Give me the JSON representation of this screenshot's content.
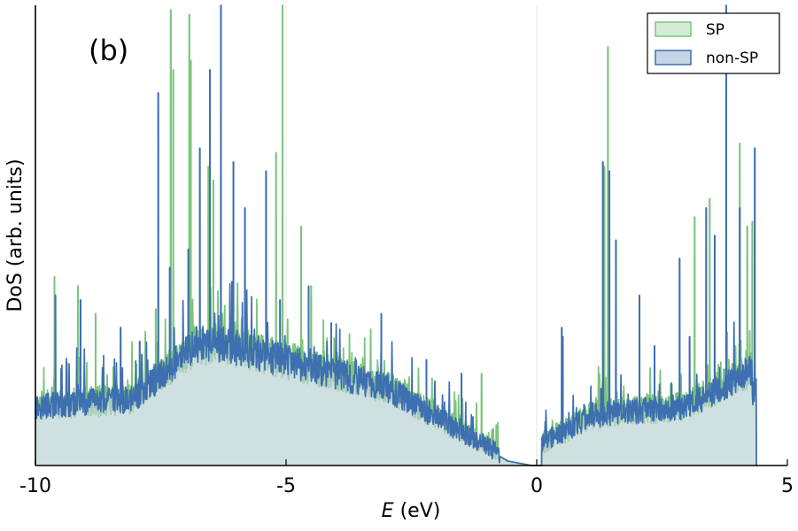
{
  "chart_data": {
    "type": "area",
    "panel_label": "(b)",
    "xlabel_italic": "E",
    "xlabel_unit": " (eV)",
    "ylabel": "DoS (arb. units)",
    "xlim": [
      -10,
      5
    ],
    "ylim": [
      0,
      1
    ],
    "xticks": [
      {
        "value": -10,
        "label": "-10"
      },
      {
        "value": -5,
        "label": "-5"
      },
      {
        "value": 0,
        "label": "0"
      },
      {
        "value": 5,
        "label": "5"
      }
    ],
    "vlines": [
      -5,
      0
    ],
    "legend_position": "top-right",
    "series": [
      {
        "name": "SP",
        "color": "#7cc47c",
        "fill": "#d4ecd4",
        "peaks": [
          {
            "x": -9.62,
            "y": 0.41
          },
          {
            "x": -9.15,
            "y": 0.39
          },
          {
            "x": -8.8,
            "y": 0.33
          },
          {
            "x": -7.6,
            "y": 0.34
          },
          {
            "x": -7.3,
            "y": 0.99
          },
          {
            "x": -7.25,
            "y": 0.86
          },
          {
            "x": -6.93,
            "y": 0.98
          },
          {
            "x": -6.9,
            "y": 0.88
          },
          {
            "x": -6.55,
            "y": 0.65
          },
          {
            "x": -6.45,
            "y": 0.62
          },
          {
            "x": -5.2,
            "y": 0.68
          },
          {
            "x": -5.07,
            "y": 1.0
          },
          {
            "x": -4.7,
            "y": 0.52
          },
          {
            "x": -4.5,
            "y": 0.39
          },
          {
            "x": -1.1,
            "y": 0.2
          },
          {
            "x": 1.42,
            "y": 0.91
          },
          {
            "x": 1.35,
            "y": 0.65
          },
          {
            "x": 3.15,
            "y": 0.54
          },
          {
            "x": 3.45,
            "y": 0.58
          },
          {
            "x": 4.05,
            "y": 0.7
          },
          {
            "x": 4.2,
            "y": 0.52
          },
          {
            "x": 4.3,
            "y": 0.53
          }
        ]
      },
      {
        "name": "non-SP",
        "color": "#3e6fb0",
        "fill": "#c6d5e6",
        "peaks": [
          {
            "x": -9.6,
            "y": 0.37
          },
          {
            "x": -9.1,
            "y": 0.36
          },
          {
            "x": -8.3,
            "y": 0.3
          },
          {
            "x": -7.92,
            "y": 0.27
          },
          {
            "x": -7.55,
            "y": 0.81
          },
          {
            "x": -7.32,
            "y": 0.43
          },
          {
            "x": -6.95,
            "y": 0.47
          },
          {
            "x": -6.72,
            "y": 0.69
          },
          {
            "x": -6.52,
            "y": 0.86
          },
          {
            "x": -6.3,
            "y": 1.0
          },
          {
            "x": -6.05,
            "y": 0.66
          },
          {
            "x": -5.82,
            "y": 0.56
          },
          {
            "x": -5.4,
            "y": 0.64
          },
          {
            "x": -5.12,
            "y": 0.36
          },
          {
            "x": -4.55,
            "y": 0.39
          },
          {
            "x": -4.1,
            "y": 0.31
          },
          {
            "x": -3.1,
            "y": 0.33
          },
          {
            "x": -2.2,
            "y": 0.23
          },
          {
            "x": -1.5,
            "y": 0.2
          },
          {
            "x": 0.5,
            "y": 0.3
          },
          {
            "x": 0.52,
            "y": 0.28
          },
          {
            "x": 1.32,
            "y": 0.66
          },
          {
            "x": 1.45,
            "y": 0.64
          },
          {
            "x": 1.58,
            "y": 0.49
          },
          {
            "x": 2.05,
            "y": 0.37
          },
          {
            "x": 2.35,
            "y": 0.26
          },
          {
            "x": 2.85,
            "y": 0.45
          },
          {
            "x": 3.05,
            "y": 0.28
          },
          {
            "x": 3.38,
            "y": 0.56
          },
          {
            "x": 3.55,
            "y": 0.5
          },
          {
            "x": 3.78,
            "y": 1.0
          },
          {
            "x": 4.05,
            "y": 0.56
          },
          {
            "x": 4.35,
            "y": 0.69
          }
        ]
      }
    ]
  }
}
